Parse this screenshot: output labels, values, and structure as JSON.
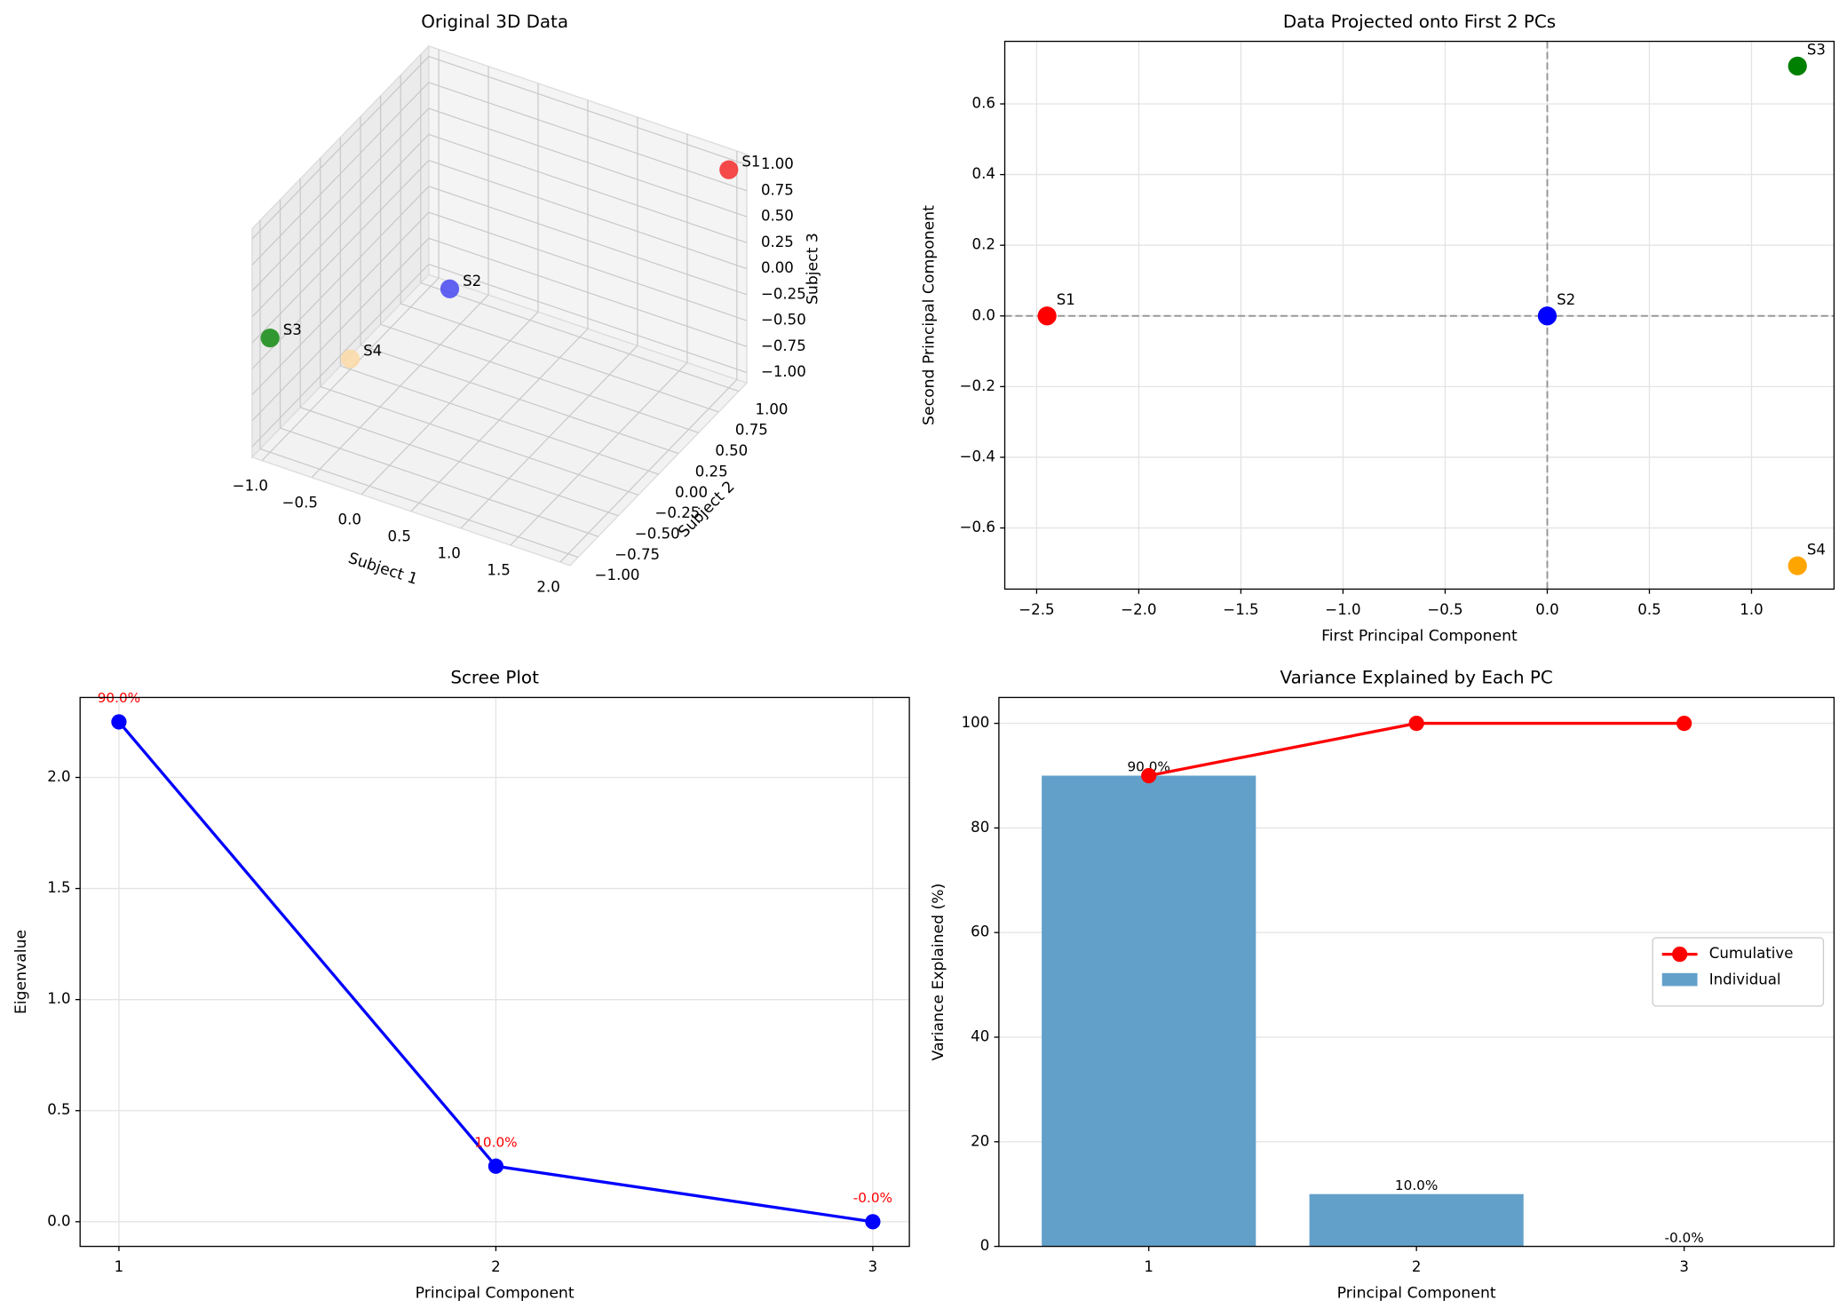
{
  "chart_data": [
    {
      "type": "scatter3d",
      "title": "Original 3D Data",
      "x_label": "Subject 1",
      "y_label": "Subject 2",
      "z_label": "Subject 3",
      "labels": [
        "S1",
        "S2",
        "S3",
        "S4"
      ],
      "x": [
        2,
        0,
        -1,
        -1
      ],
      "y": [
        1,
        0,
        -1,
        0
      ],
      "z": [
        1,
        0,
        0,
        -1
      ],
      "colors": [
        "#f52a2a",
        "#4848f2",
        "#108a10",
        "#fbd9a6"
      ],
      "xlim": [
        -1.1,
        2.1
      ],
      "ylim": [
        -1.1,
        1.1
      ],
      "zlim": [
        -1.1,
        1.1
      ],
      "xticks": [
        {
          "value": -1,
          "label": "−1.0"
        },
        {
          "value": -0.5,
          "label": "−0.5"
        },
        {
          "value": 0,
          "label": "0.0"
        },
        0.5,
        {
          "value": 1,
          "label": "1.0"
        },
        1.5,
        {
          "value": 2,
          "label": "2.0"
        }
      ],
      "yticks": [
        {
          "value": -1,
          "label": "−1.00"
        },
        {
          "value": -0.75,
          "label": "−0.75"
        },
        {
          "value": -0.5,
          "label": "−0.50"
        },
        {
          "value": -0.25,
          "label": "−0.25"
        },
        {
          "value": 0,
          "label": "0.00"
        },
        0.25,
        {
          "value": 0.5,
          "label": "0.50"
        },
        0.75,
        {
          "value": 1,
          "label": "1.00"
        }
      ],
      "zticks": [
        {
          "value": -1,
          "label": "−1.00"
        },
        {
          "value": -0.75,
          "label": "−0.75"
        },
        {
          "value": -0.5,
          "label": "−0.50"
        },
        {
          "value": -0.25,
          "label": "−0.25"
        },
        {
          "value": 0,
          "label": "0.00"
        },
        0.25,
        {
          "value": 0.5,
          "label": "0.50"
        },
        0.75,
        {
          "value": 1,
          "label": "1.00"
        }
      ],
      "grid": true
    },
    {
      "type": "scatter",
      "title": "Data Projected onto First 2 PCs",
      "x_label": "First Principal Component",
      "y_label": "Second Principal Component",
      "labels": [
        "S1",
        "S2",
        "S3",
        "S4"
      ],
      "x": [
        -2.449,
        0,
        1.225,
        1.225
      ],
      "y": [
        0,
        0,
        0.707,
        -0.707
      ],
      "colors": [
        "red",
        "blue",
        "green",
        "orange"
      ],
      "xlim": [
        -2.656,
        1.404
      ],
      "ylim": [
        -0.773,
        0.777
      ],
      "xticks": [
        {
          "value": -2.5,
          "label": "−2.5"
        },
        {
          "value": -2,
          "label": "−2.0"
        },
        {
          "value": -1.5,
          "label": "−1.5"
        },
        {
          "value": -1,
          "label": "−1.0"
        },
        {
          "value": -0.5,
          "label": "−0.5"
        },
        {
          "value": 0,
          "label": "0.0"
        },
        0.5,
        {
          "value": 1,
          "label": "1.0"
        }
      ],
      "yticks": [
        {
          "value": -0.6,
          "label": "−0.6"
        },
        {
          "value": -0.4,
          "label": "−0.4"
        },
        {
          "value": -0.2,
          "label": "−0.2"
        },
        {
          "value": 0,
          "label": "0.0"
        },
        0.2,
        0.4,
        0.6
      ],
      "hlines": [
        0
      ],
      "vlines": [
        0
      ],
      "grid": true
    },
    {
      "type": "line",
      "title": "Scree Plot",
      "x_label": "Principal Component",
      "y_label": "Eigenvalue",
      "x": [
        1,
        2,
        3
      ],
      "values": [
        2.25,
        0.25,
        0
      ],
      "color": "blue",
      "percent_labels": [
        "90.0%",
        "10.0%",
        "-0.0%"
      ],
      "percent_color": "red",
      "xlim": [
        0.897,
        3.097
      ],
      "ylim": [
        -0.111,
        2.36
      ],
      "xticks": [
        1,
        2,
        3
      ],
      "yticks": [
        {
          "value": 0,
          "label": "0.0"
        },
        0.5,
        {
          "value": 1,
          "label": "1.0"
        },
        1.5,
        {
          "value": 2,
          "label": "2.0"
        }
      ],
      "grid": true
    },
    {
      "type": "bar",
      "title": "Variance Explained by Each PC",
      "x_label": "Principal Component",
      "y_label": "Variance Explained (%)",
      "categories": [
        "1",
        "2",
        "3"
      ],
      "series": [
        {
          "name": "Individual",
          "type": "bar",
          "color": "#62a0ca",
          "values": [
            90,
            10,
            0
          ],
          "value_labels": [
            "90.0%",
            "10.0%",
            "-0.0%"
          ]
        },
        {
          "name": "Cumulative",
          "type": "line",
          "color": "red",
          "values": [
            90,
            100,
            100
          ]
        }
      ],
      "ylim": [
        0,
        104.95
      ],
      "yticks": [
        0,
        20,
        40,
        60,
        80,
        100
      ],
      "grid": true,
      "legend": "center right"
    }
  ]
}
